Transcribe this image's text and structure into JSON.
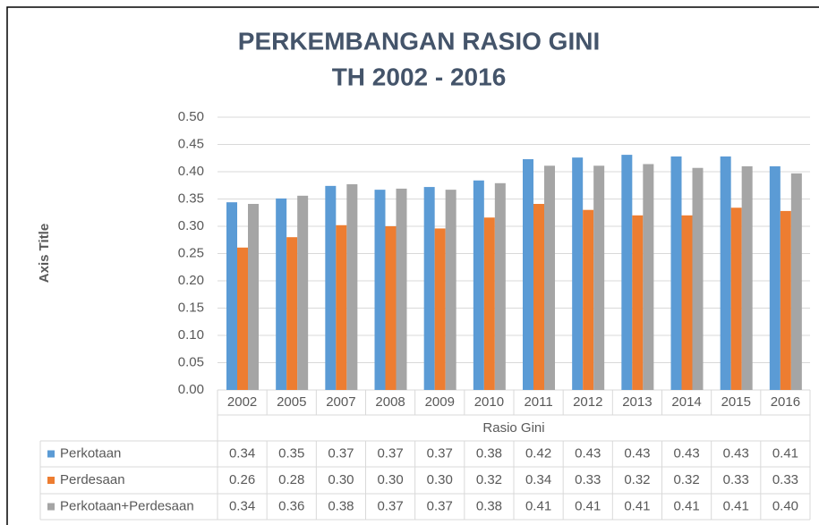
{
  "chart_data": {
    "type": "bar",
    "title": [
      "PERKEMBANGAN RASIO GINI",
      "TH 2002 - 2016"
    ],
    "y_label": "Axis Title",
    "x_label": "Rasio Gini",
    "categories": [
      "2002",
      "2005",
      "2007",
      "2008",
      "2009",
      "2010",
      "2011",
      "2012",
      "2013",
      "2014",
      "2015",
      "2016"
    ],
    "series": [
      {
        "name": "Perkotaan",
        "color": "#5b9bd5",
        "values": [
          0.344,
          0.351,
          0.374,
          0.367,
          0.372,
          0.384,
          0.423,
          0.426,
          0.431,
          0.428,
          0.428,
          0.41
        ],
        "value_labels": [
          "0.34",
          "0.35",
          "0.37",
          "0.37",
          "0.37",
          "0.38",
          "0.42",
          "0.43",
          "0.43",
          "0.43",
          "0.43",
          "0.41"
        ]
      },
      {
        "name": "Perdesaan",
        "color": "#ed7d31",
        "values": [
          0.261,
          0.28,
          0.302,
          0.3,
          0.296,
          0.316,
          0.341,
          0.33,
          0.32,
          0.32,
          0.334,
          0.328
        ],
        "value_labels": [
          "0.26",
          "0.28",
          "0.30",
          "0.30",
          "0.30",
          "0.32",
          "0.34",
          "0.33",
          "0.32",
          "0.32",
          "0.33",
          "0.33"
        ]
      },
      {
        "name": "Perkotaan+Perdesaan",
        "color": "#a5a5a5",
        "values": [
          0.341,
          0.356,
          0.377,
          0.369,
          0.367,
          0.379,
          0.411,
          0.411,
          0.414,
          0.407,
          0.41,
          0.397
        ],
        "value_labels": [
          "0.34",
          "0.36",
          "0.38",
          "0.37",
          "0.37",
          "0.38",
          "0.41",
          "0.41",
          "0.41",
          "0.41",
          "0.41",
          "0.40"
        ]
      }
    ],
    "ylim": [
      0,
      0.5
    ],
    "yticks": [
      {
        "value": 0,
        "label": "0.00"
      },
      {
        "value": 0.05,
        "label": "0.05"
      },
      {
        "value": 0.1,
        "label": "0.10"
      },
      {
        "value": 0.15,
        "label": "0.15"
      },
      {
        "value": 0.2,
        "label": "0.20"
      },
      {
        "value": 0.25,
        "label": "0.25"
      },
      {
        "value": 0.3,
        "label": "0.30"
      },
      {
        "value": 0.35,
        "label": "0.35"
      },
      {
        "value": 0.4,
        "label": "0.40"
      },
      {
        "value": 0.45,
        "label": "0.45"
      },
      {
        "value": 0.5,
        "label": "0.50"
      }
    ],
    "grid": true
  }
}
